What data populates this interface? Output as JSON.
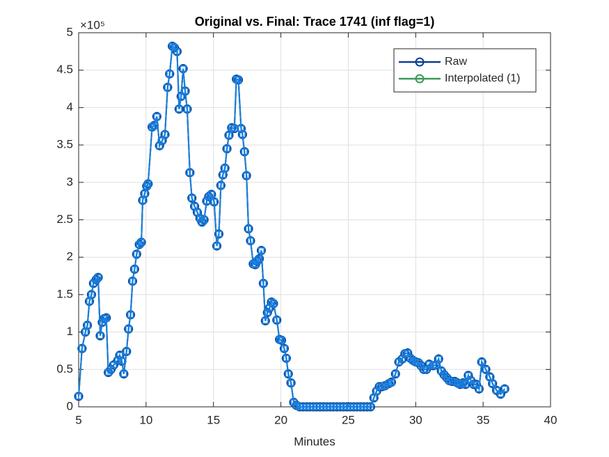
{
  "chart_data": {
    "type": "line",
    "title": "Original vs. Final: Trace 1741 (inf flag=1)",
    "xlabel": "Minutes",
    "y_exponent": "×10⁵",
    "x": [
      5,
      5.25,
      5.5,
      5.65,
      5.8,
      5.95,
      6.1,
      6.3,
      6.45,
      6.6,
      6.75,
      6.9,
      7.05,
      7.2,
      7.4,
      7.6,
      7.9,
      8.05,
      8.2,
      8.35,
      8.55,
      8.7,
      8.85,
      9.0,
      9.15,
      9.3,
      9.5,
      9.65,
      9.75,
      9.9,
      10.05,
      10.15,
      10.45,
      10.6,
      10.8,
      11.0,
      11.2,
      11.4,
      11.6,
      11.75,
      11.95,
      12.1,
      12.3,
      12.45,
      12.6,
      12.75,
      12.9,
      13.05,
      13.25,
      13.4,
      13.6,
      13.8,
      14.0,
      14.15,
      14.3,
      14.5,
      14.65,
      14.85,
      15.05,
      15.25,
      15.4,
      15.55,
      15.7,
      15.85,
      16.0,
      16.15,
      16.35,
      16.55,
      16.7,
      16.85,
      17.05,
      17.15,
      17.3,
      17.45,
      17.6,
      17.75,
      17.95,
      18.1,
      18.25,
      18.4,
      18.55,
      18.7,
      18.85,
      19.0,
      19.15,
      19.3,
      19.45,
      19.7,
      19.9,
      20.05,
      20.25,
      20.4,
      20.55,
      20.75,
      20.95,
      21.15,
      21.4,
      21.65,
      21.9,
      22.15,
      22.4,
      22.65,
      22.9,
      23.15,
      23.4,
      23.65,
      23.9,
      24.15,
      24.4,
      24.65,
      24.9,
      25.15,
      25.4,
      25.65,
      25.9,
      26.15,
      26.4,
      26.65,
      26.9,
      27.1,
      27.3,
      27.5,
      27.7,
      28.0,
      28.2,
      28.5,
      28.75,
      29.0,
      29.2,
      29.4,
      29.6,
      29.8,
      30.0,
      30.2,
      30.4,
      30.6,
      30.8,
      31.0,
      31.3,
      31.5,
      31.7,
      31.9,
      32.1,
      32.3,
      32.5,
      32.7,
      32.9,
      33.1,
      33.3,
      33.5,
      33.7,
      33.9,
      34.1,
      34.3,
      34.5,
      34.7,
      34.9,
      35.2,
      35.5,
      35.7,
      36.0,
      36.3,
      36.6
    ],
    "series": [
      {
        "name": "Interpolated (1)",
        "color": "#3a9a5b",
        "marker": "circle",
        "values": [
          0.14,
          0.78,
          1.0,
          1.09,
          1.41,
          1.5,
          1.65,
          1.7,
          1.73,
          0.95,
          1.13,
          1.18,
          1.19,
          0.46,
          0.5,
          0.56,
          0.62,
          0.69,
          0.61,
          0.44,
          0.74,
          1.04,
          1.23,
          1.68,
          1.84,
          2.04,
          2.17,
          2.2,
          2.76,
          2.85,
          2.95,
          2.98,
          3.74,
          3.76,
          3.88,
          3.49,
          3.56,
          3.64,
          4.27,
          4.45,
          4.82,
          4.8,
          4.75,
          3.98,
          4.15,
          4.52,
          4.22,
          3.98,
          3.13,
          2.79,
          2.68,
          2.6,
          2.52,
          2.47,
          2.5,
          2.75,
          2.81,
          2.84,
          2.74,
          2.15,
          2.31,
          2.96,
          3.1,
          3.19,
          3.45,
          3.63,
          3.73,
          3.72,
          4.38,
          4.37,
          3.72,
          3.64,
          3.41,
          3.09,
          2.38,
          2.22,
          1.91,
          1.9,
          1.95,
          1.98,
          2.09,
          1.65,
          1.15,
          1.26,
          1.32,
          1.4,
          1.38,
          1.16,
          0.9,
          0.89,
          0.78,
          0.65,
          0.44,
          0.32,
          0.06,
          0.02,
          0,
          0,
          0,
          0,
          0,
          0,
          0,
          0,
          0,
          0,
          0,
          0,
          0,
          0,
          0,
          0,
          0,
          0,
          0,
          0,
          0,
          0,
          0.12,
          0.21,
          0.27,
          0.27,
          0.28,
          0.31,
          0.33,
          0.44,
          0.6,
          0.64,
          0.71,
          0.72,
          0.65,
          0.62,
          0.6,
          0.59,
          0.55,
          0.5,
          0.5,
          0.57,
          0.55,
          0.56,
          0.64,
          0.48,
          0.43,
          0.39,
          0.35,
          0.34,
          0.34,
          0.32,
          0.3,
          0.32,
          0.3,
          0.42,
          0.35,
          0.3,
          0.3,
          0.24,
          0.6,
          0.5,
          0.4,
          0.31,
          0.22,
          0.17,
          0.24
        ]
      },
      {
        "name": "Raw",
        "color": "#0b3f91",
        "marker": "circle",
        "values": [
          0.14,
          0.78,
          1.0,
          1.09,
          1.41,
          1.5,
          1.65,
          1.7,
          1.73,
          0.95,
          1.13,
          1.18,
          1.19,
          0.46,
          0.5,
          0.56,
          0.62,
          0.69,
          0.61,
          0.44,
          0.74,
          1.04,
          1.23,
          1.68,
          1.84,
          2.04,
          2.17,
          2.2,
          2.76,
          2.85,
          2.95,
          2.98,
          3.74,
          3.76,
          3.88,
          3.49,
          3.56,
          3.64,
          4.27,
          4.45,
          4.82,
          4.8,
          4.75,
          3.98,
          4.15,
          4.52,
          4.22,
          3.98,
          3.13,
          2.79,
          2.68,
          2.6,
          2.52,
          2.47,
          2.5,
          2.75,
          2.81,
          2.84,
          2.74,
          2.15,
          2.31,
          2.96,
          3.1,
          3.19,
          3.45,
          3.63,
          3.73,
          3.72,
          4.38,
          4.37,
          3.72,
          3.64,
          3.41,
          3.09,
          2.38,
          2.22,
          1.91,
          1.9,
          1.95,
          1.98,
          2.09,
          1.65,
          1.15,
          1.26,
          1.32,
          1.4,
          1.38,
          1.16,
          0.9,
          0.89,
          0.78,
          0.65,
          0.44,
          0.32,
          0.06,
          0.02,
          0,
          0,
          0,
          0,
          0,
          0,
          0,
          0,
          0,
          0,
          0,
          0,
          0,
          0,
          0,
          0,
          0,
          0,
          0,
          0,
          0,
          0,
          0.12,
          0.21,
          0.27,
          0.27,
          0.28,
          0.31,
          0.33,
          0.44,
          0.6,
          0.64,
          0.71,
          0.72,
          0.65,
          0.62,
          0.6,
          0.59,
          0.55,
          0.5,
          0.5,
          0.57,
          0.55,
          0.56,
          0.64,
          0.48,
          0.43,
          0.39,
          0.35,
          0.34,
          0.34,
          0.32,
          0.3,
          0.32,
          0.3,
          0.42,
          0.35,
          0.3,
          0.3,
          0.24,
          0.6,
          0.5,
          0.4,
          0.31,
          0.22,
          0.17,
          0.24
        ]
      },
      {
        "color": "#1a7fe0",
        "marker": "square",
        "values": [
          0.14,
          0.78,
          1.0,
          1.09,
          1.41,
          1.5,
          1.65,
          1.7,
          1.73,
          0.95,
          1.13,
          1.18,
          1.19,
          0.46,
          0.5,
          0.56,
          0.62,
          0.69,
          0.61,
          0.44,
          0.74,
          1.04,
          1.23,
          1.68,
          1.84,
          2.04,
          2.17,
          2.2,
          2.76,
          2.85,
          2.95,
          2.98,
          3.74,
          3.76,
          3.88,
          3.49,
          3.56,
          3.64,
          4.27,
          4.45,
          4.82,
          4.8,
          4.75,
          3.98,
          4.15,
          4.52,
          4.22,
          3.98,
          3.13,
          2.79,
          2.68,
          2.6,
          2.52,
          2.47,
          2.5,
          2.75,
          2.81,
          2.84,
          2.74,
          2.15,
          2.31,
          2.96,
          3.1,
          3.19,
          3.45,
          3.63,
          3.73,
          3.72,
          4.38,
          4.37,
          3.72,
          3.64,
          3.41,
          3.09,
          2.38,
          2.22,
          1.91,
          1.9,
          1.95,
          1.98,
          2.09,
          1.65,
          1.15,
          1.26,
          1.32,
          1.4,
          1.38,
          1.16,
          0.9,
          0.89,
          0.78,
          0.65,
          0.44,
          0.32,
          0.06,
          0.02,
          0,
          0,
          0,
          0,
          0,
          0,
          0,
          0,
          0,
          0,
          0,
          0,
          0,
          0,
          0,
          0,
          0,
          0,
          0,
          0,
          0,
          0,
          0.12,
          0.21,
          0.27,
          0.27,
          0.28,
          0.31,
          0.33,
          0.44,
          0.6,
          0.64,
          0.71,
          0.72,
          0.65,
          0.62,
          0.6,
          0.59,
          0.55,
          0.5,
          0.5,
          0.57,
          0.55,
          0.56,
          0.64,
          0.48,
          0.43,
          0.39,
          0.35,
          0.34,
          0.34,
          0.32,
          0.3,
          0.32,
          0.3,
          0.42,
          0.35,
          0.3,
          0.3,
          0.24,
          0.6,
          0.5,
          0.4,
          0.31,
          0.22,
          0.17,
          0.24
        ]
      }
    ],
    "xlim": [
      5,
      40
    ],
    "xticks": [
      5,
      10,
      15,
      20,
      25,
      30,
      35,
      40
    ],
    "ylim": [
      0,
      5
    ],
    "yticks": [
      0,
      0.5,
      1,
      1.5,
      2,
      2.5,
      3,
      3.5,
      4,
      4.5,
      5
    ],
    "grid": true,
    "legend": "northeast",
    "legend_order": [
      1,
      0
    ]
  }
}
